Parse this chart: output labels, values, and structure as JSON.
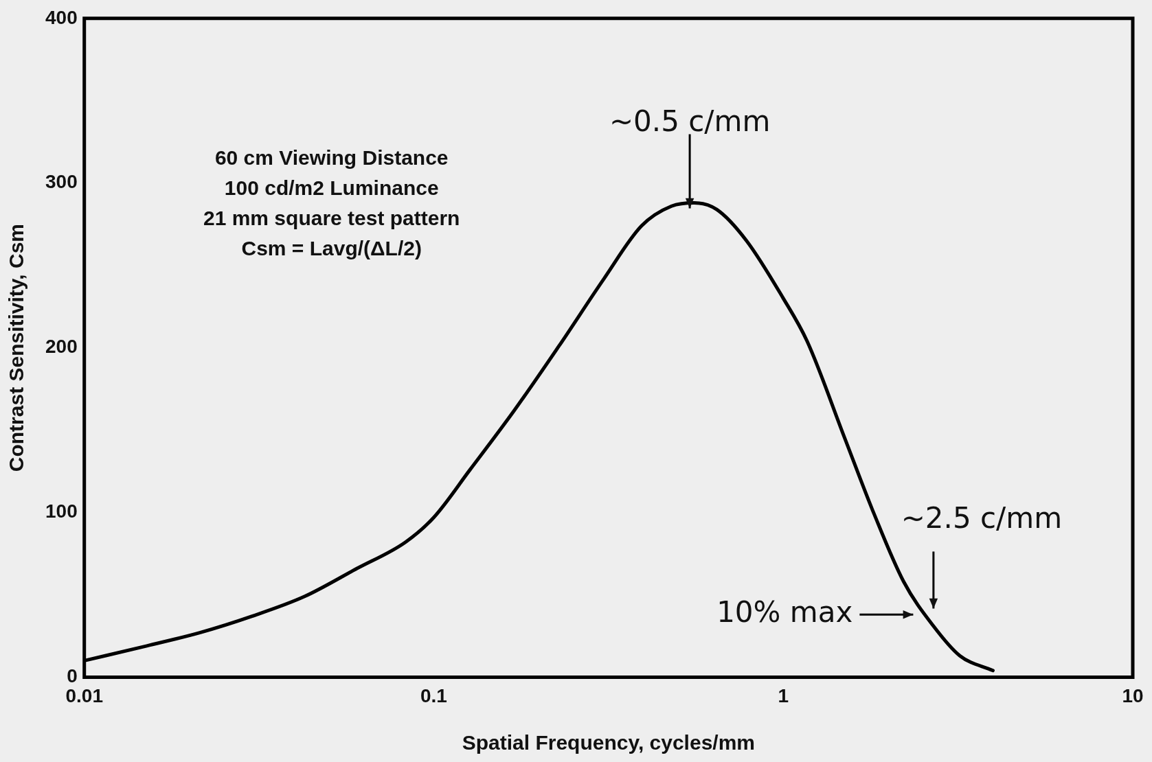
{
  "chart_data": {
    "type": "line",
    "xlabel": "Spatial Frequency, cycles/mm",
    "ylabel": "Contrast Sensitivity, Csm",
    "x": [
      0.01,
      0.0151,
      0.0214,
      0.0302,
      0.0427,
      0.0603,
      0.083,
      0.1,
      0.127,
      0.17,
      0.228,
      0.307,
      0.393,
      0.479,
      0.556,
      0.645,
      0.785,
      1,
      1.17,
      1.5,
      1.82,
      2.21,
      2.69,
      3.2,
      3.98
    ],
    "series": [
      {
        "color": "#000000",
        "values": [
          10,
          19,
          27,
          37,
          49,
          66,
          82,
          97,
          126,
          162,
          201,
          242,
          274,
          286,
          288,
          284,
          265,
          230,
          204,
          145,
          99,
          58,
          31,
          13,
          4
        ]
      }
    ],
    "xlim": [
      0.01,
      10
    ],
    "xticks": [
      0.01,
      0.1,
      1,
      10
    ],
    "ylim": [
      0,
      400
    ],
    "yticks": [
      0,
      100,
      200,
      300,
      400
    ],
    "log": "x",
    "grid": false,
    "legend": false,
    "marker": "none",
    "line_style": "solid",
    "annotations": [
      "60 cm Viewing Distance",
      "100 cd/m2 Luminance",
      "21 mm square test pattern",
      "Csm = Lavg/(ΔL/2)",
      {
        "text": "~0.5 c/mm",
        "x": 0.54,
        "y": 288
      },
      {
        "text": "~2.5 c/mm",
        "x": 2.69,
        "y": 45
      },
      {
        "text": "10% max",
        "x": 2.27,
        "y": 38
      }
    ]
  }
}
